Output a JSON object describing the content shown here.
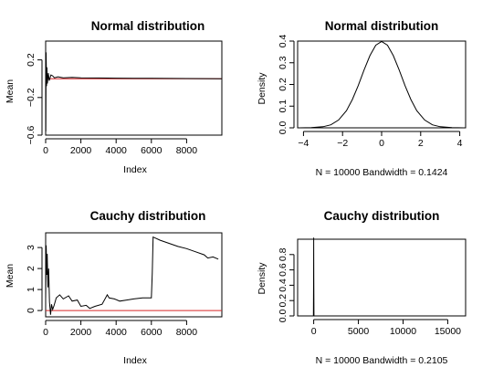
{
  "chart_data": [
    {
      "panel": "top-left",
      "type": "line",
      "title": "Normal distribution",
      "xlabel": "Index",
      "ylabel": "Mean",
      "xlim": [
        0,
        10000
      ],
      "ylim": [
        -0.6,
        0.4
      ],
      "x_ticks": [
        0,
        2000,
        4000,
        6000,
        8000
      ],
      "y_ticks": [
        -0.6,
        -0.2,
        0.2
      ],
      "reference_line": {
        "y": 0,
        "color": "#d62728"
      },
      "series": [
        {
          "color": "#000000",
          "x": [
            1,
            10,
            25,
            50,
            75,
            100,
            150,
            200,
            300,
            400,
            500,
            700,
            1000,
            1500,
            2000,
            3000,
            4000,
            5000,
            6000,
            7000,
            8000,
            9000,
            10000
          ],
          "y": [
            0.38,
            -0.56,
            0.28,
            -0.08,
            0.12,
            -0.05,
            0.06,
            -0.02,
            0.04,
            0.03,
            0.01,
            0.02,
            0.01,
            0.015,
            0.01,
            0.008,
            0.006,
            0.005,
            0.004,
            0.003,
            0.002,
            0.001,
            0.0
          ]
        }
      ]
    },
    {
      "panel": "top-right",
      "type": "line",
      "title": "Normal distribution",
      "xlabel": "N = 10000   Bandwidth = 0.1424",
      "ylabel": "Density",
      "xlim": [
        -4.3,
        4.3
      ],
      "ylim": [
        0,
        0.4
      ],
      "x_ticks": [
        -4,
        -2,
        0,
        2,
        4
      ],
      "y_ticks": [
        0.0,
        0.1,
        0.2,
        0.3,
        0.4
      ],
      "series": [
        {
          "color": "#000000",
          "x": [
            -4.2,
            -3.6,
            -3.0,
            -2.6,
            -2.2,
            -1.8,
            -1.5,
            -1.2,
            -0.9,
            -0.6,
            -0.3,
            0.0,
            0.3,
            0.6,
            0.9,
            1.2,
            1.5,
            1.8,
            2.2,
            2.6,
            3.0,
            3.6,
            4.2
          ],
          "y": [
            0.0,
            0.001,
            0.005,
            0.014,
            0.036,
            0.079,
            0.13,
            0.194,
            0.266,
            0.333,
            0.381,
            0.398,
            0.381,
            0.333,
            0.266,
            0.194,
            0.13,
            0.079,
            0.036,
            0.014,
            0.005,
            0.001,
            0.0
          ]
        }
      ]
    },
    {
      "panel": "bottom-left",
      "type": "line",
      "title": "Cauchy distribution",
      "xlabel": "Index",
      "ylabel": "Mean",
      "xlim": [
        0,
        10000
      ],
      "ylim": [
        -0.3,
        3.7
      ],
      "x_ticks": [
        0,
        2000,
        4000,
        6000,
        8000
      ],
      "y_ticks": [
        0,
        1,
        2,
        3
      ],
      "reference_line": {
        "y": 0,
        "color": "#d62728"
      },
      "series": [
        {
          "color": "#000000",
          "x": [
            1,
            30,
            60,
            90,
            130,
            170,
            220,
            280,
            330,
            400,
            480,
            600,
            800,
            1000,
            1300,
            1500,
            1800,
            2000,
            2300,
            2500,
            2800,
            3200,
            3500,
            3600,
            3900,
            4200,
            4600,
            5000,
            5500,
            6000,
            6050,
            6100,
            6500,
            7000,
            7500,
            8000,
            8500,
            9000,
            9200,
            9500,
            9800
          ],
          "y": [
            0.5,
            3.1,
            1.7,
            2.7,
            1.1,
            2.0,
            0.4,
            -0.2,
            0.3,
            0.05,
            0.25,
            0.6,
            0.75,
            0.55,
            0.7,
            0.45,
            0.5,
            0.2,
            0.25,
            0.1,
            0.2,
            0.3,
            0.75,
            0.6,
            0.55,
            0.45,
            0.5,
            0.55,
            0.6,
            0.6,
            1.8,
            3.5,
            3.35,
            3.2,
            3.05,
            2.95,
            2.8,
            2.65,
            2.5,
            2.55,
            2.45
          ]
        }
      ]
    },
    {
      "panel": "bottom-right",
      "type": "line",
      "title": "Cauchy distribution",
      "xlabel": "N = 10000   Bandwidth = 0.2105",
      "ylabel": "Density",
      "xlim": [
        -1800,
        17000
      ],
      "ylim": [
        0,
        1.0
      ],
      "x_ticks": [
        0,
        5000,
        10000,
        15000
      ],
      "y_ticks": [
        0.0,
        0.2,
        0.4,
        0.6,
        0.8
      ],
      "series": [
        {
          "color": "#000000",
          "x": [
            -1500,
            -30,
            -10,
            0,
            10,
            30,
            16000
          ],
          "y": [
            0.0,
            0.0,
            0.5,
            1.02,
            0.5,
            0.0,
            0.0
          ]
        }
      ]
    }
  ]
}
